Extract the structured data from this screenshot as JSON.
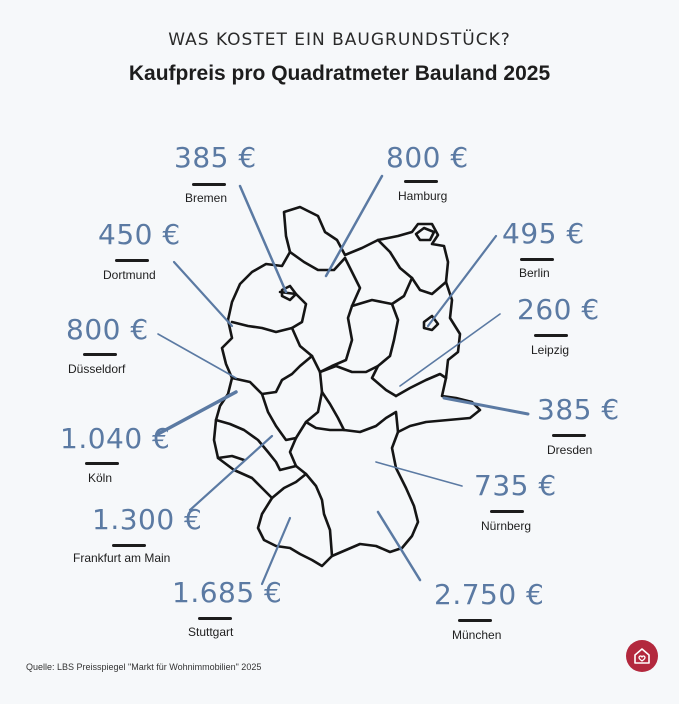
{
  "header": {
    "kicker": "WAS KOSTET EIN BAUGRUNDSTÜCK?",
    "title": "Kaufpreis pro Quadratmeter Bauland 2025"
  },
  "cities": [
    {
      "name": "Bremen",
      "price": "385 €"
    },
    {
      "name": "Hamburg",
      "price": "800 €"
    },
    {
      "name": "Dortmund",
      "price": "450 €"
    },
    {
      "name": "Berlin",
      "price": "495 €"
    },
    {
      "name": "Leipzig",
      "price": "260 €"
    },
    {
      "name": "Düsseldorf",
      "price": "800 €"
    },
    {
      "name": "Dresden",
      "price": "385 €"
    },
    {
      "name": "Köln",
      "price": "1.040 €"
    },
    {
      "name": "Nürnberg",
      "price": "735 €"
    },
    {
      "name": "Frankfurt am Main",
      "price": "1.300 €"
    },
    {
      "name": "Stuttgart",
      "price": "1.685 €"
    },
    {
      "name": "München",
      "price": "2.750 €"
    }
  ],
  "footer": {
    "source": "Quelle: LBS Preisspiegel \"Markt für Wohnimmobilien\" 2025"
  },
  "colors": {
    "accent": "#5b7aa3",
    "logo": "#b3283d",
    "background": "#f6f8fa"
  },
  "icons": {
    "logo": "house-heart-icon"
  }
}
